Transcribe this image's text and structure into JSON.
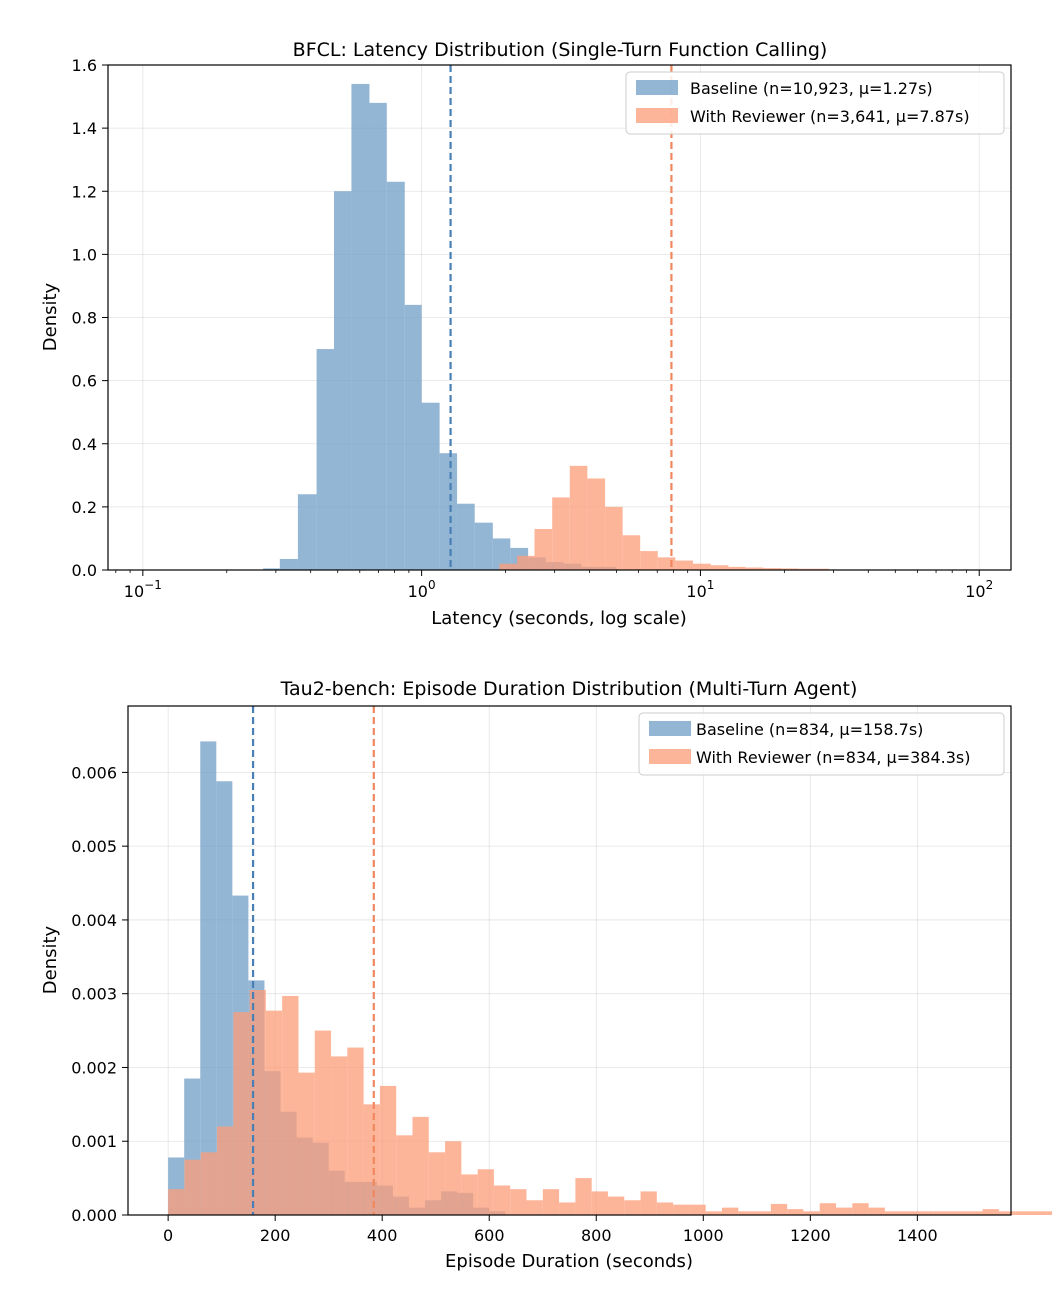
{
  "chart_data": [
    {
      "type": "histogram",
      "title": "BFCL: Latency Distribution (Single-Turn Function Calling)",
      "xlabel": "Latency (seconds, log scale)",
      "ylabel": "Density",
      "xscale": "log",
      "xlim": [
        0.075,
        130
      ],
      "ylim": [
        0,
        1.6
      ],
      "xticks": [
        {
          "value": 0.1,
          "base": "10",
          "exp": "−1"
        },
        {
          "value": 1,
          "base": "10",
          "exp": "0"
        },
        {
          "value": 10,
          "base": "10",
          "exp": "1"
        },
        {
          "value": 100,
          "base": "10",
          "exp": "2"
        }
      ],
      "yticks": [
        "0.0",
        "0.2",
        "0.4",
        "0.6",
        "0.8",
        "1.0",
        "1.2",
        "1.4",
        "1.6"
      ],
      "grid": true,
      "legend_position": "upper right",
      "series": [
        {
          "name": "Baseline (n=10,923, μ=1.27s)",
          "color": "#6f9dc7",
          "opacity": 0.75,
          "mean": 1.27,
          "bins": [
            {
              "x0": 0.27,
              "x1": 0.31,
              "y": 0.005
            },
            {
              "x0": 0.31,
              "x1": 0.36,
              "y": 0.035
            },
            {
              "x0": 0.36,
              "x1": 0.42,
              "y": 0.24
            },
            {
              "x0": 0.42,
              "x1": 0.485,
              "y": 0.7
            },
            {
              "x0": 0.485,
              "x1": 0.56,
              "y": 1.2
            },
            {
              "x0": 0.56,
              "x1": 0.65,
              "y": 1.54
            },
            {
              "x0": 0.65,
              "x1": 0.75,
              "y": 1.48
            },
            {
              "x0": 0.75,
              "x1": 0.87,
              "y": 1.23
            },
            {
              "x0": 0.87,
              "x1": 1.0,
              "y": 0.84
            },
            {
              "x0": 1.0,
              "x1": 1.16,
              "y": 0.53
            },
            {
              "x0": 1.16,
              "x1": 1.34,
              "y": 0.37
            },
            {
              "x0": 1.34,
              "x1": 1.55,
              "y": 0.21
            },
            {
              "x0": 1.55,
              "x1": 1.8,
              "y": 0.15
            },
            {
              "x0": 1.8,
              "x1": 2.08,
              "y": 0.1
            },
            {
              "x0": 2.08,
              "x1": 2.41,
              "y": 0.07
            },
            {
              "x0": 2.41,
              "x1": 2.79,
              "y": 0.04
            },
            {
              "x0": 2.79,
              "x1": 3.23,
              "y": 0.025
            },
            {
              "x0": 3.23,
              "x1": 3.74,
              "y": 0.02
            },
            {
              "x0": 3.74,
              "x1": 5.0,
              "y": 0.01
            }
          ]
        },
        {
          "name": "With Reviewer (n=3,641, μ=7.87s)",
          "color": "#fc9c78",
          "opacity": 0.75,
          "mean": 7.87,
          "bins": [
            {
              "x0": 1.9,
              "x1": 2.2,
              "y": 0.02
            },
            {
              "x0": 2.2,
              "x1": 2.54,
              "y": 0.045
            },
            {
              "x0": 2.54,
              "x1": 2.94,
              "y": 0.13
            },
            {
              "x0": 2.94,
              "x1": 3.4,
              "y": 0.23
            },
            {
              "x0": 3.4,
              "x1": 3.93,
              "y": 0.33
            },
            {
              "x0": 3.93,
              "x1": 4.55,
              "y": 0.29
            },
            {
              "x0": 4.55,
              "x1": 5.26,
              "y": 0.2
            },
            {
              "x0": 5.26,
              "x1": 6.08,
              "y": 0.11
            },
            {
              "x0": 6.08,
              "x1": 7.03,
              "y": 0.06
            },
            {
              "x0": 7.03,
              "x1": 8.13,
              "y": 0.04
            },
            {
              "x0": 8.13,
              "x1": 9.4,
              "y": 0.03
            },
            {
              "x0": 9.4,
              "x1": 10.9,
              "y": 0.02
            },
            {
              "x0": 10.9,
              "x1": 12.6,
              "y": 0.015
            },
            {
              "x0": 12.6,
              "x1": 14.5,
              "y": 0.01
            },
            {
              "x0": 14.5,
              "x1": 16.8,
              "y": 0.008
            },
            {
              "x0": 16.8,
              "x1": 19.5,
              "y": 0.006
            },
            {
              "x0": 19.5,
              "x1": 22.5,
              "y": 0.005
            },
            {
              "x0": 22.5,
              "x1": 29.0,
              "y": 0.004
            }
          ]
        }
      ]
    },
    {
      "type": "histogram",
      "title": "Tau2-bench: Episode Duration Distribution (Multi-Turn Agent)",
      "xlabel": "Episode Duration (seconds)",
      "ylabel": "Density",
      "xscale": "linear",
      "xlim": [
        -75,
        1575
      ],
      "ylim": [
        0,
        0.0069
      ],
      "xticks": [
        "0",
        "200",
        "400",
        "600",
        "800",
        "1000",
        "1200",
        "1400"
      ],
      "xtick_values": [
        0,
        200,
        400,
        600,
        800,
        1000,
        1200,
        1400
      ],
      "yticks": [
        "0.000",
        "0.001",
        "0.002",
        "0.003",
        "0.004",
        "0.005",
        "0.006"
      ],
      "ytick_values": [
        0,
        0.001,
        0.002,
        0.003,
        0.004,
        0.005,
        0.006
      ],
      "grid": true,
      "legend_position": "upper right",
      "series": [
        {
          "name": "Baseline (n=834, μ=158.7s)",
          "color": "#6f9dc7",
          "opacity": 0.75,
          "mean": 158.7,
          "bin_start": 0,
          "bin_width": 30,
          "values": [
            0.00078,
            0.00185,
            0.00642,
            0.00588,
            0.00433,
            0.00318,
            0.00195,
            0.0014,
            0.00105,
            0.00098,
            0.0006,
            0.00045,
            0.00045,
            0.0004,
            0.00025,
            0.0001,
            0.0002,
            0.00032,
            0.0003,
            0.0001,
            5e-05
          ]
        },
        {
          "name": "With Reviewer (n=834, μ=384.3s)",
          "color": "#fc9c78",
          "opacity": 0.75,
          "mean": 384.3,
          "bin_start": 0,
          "bin_width": 30.44,
          "values": [
            0.00035,
            0.00075,
            0.00085,
            0.0012,
            0.00275,
            0.00305,
            0.00277,
            0.00297,
            0.00193,
            0.0025,
            0.00215,
            0.00227,
            0.0015,
            0.00175,
            0.00108,
            0.00133,
            0.00085,
            0.001,
            0.00055,
            0.00062,
            0.0004,
            0.00035,
            0.0002,
            0.00035,
            0.00017,
            0.0005,
            0.00032,
            0.00025,
            0.0002,
            0.00032,
            0.00017,
            0.00014,
            0.00014,
            5e-05,
            0.0001,
            5e-05,
            5e-05,
            0.00015,
            8e-05,
            5e-05,
            0.00016,
            0.0001,
            0.00016,
            0.0001,
            5e-05,
            5e-05,
            5e-05,
            5e-05,
            5e-05,
            5e-05,
            8e-05,
            5e-05,
            5e-05,
            5e-05,
            5e-05,
            5e-05,
            5e-05,
            5e-05,
            5e-05,
            8e-05,
            5e-05,
            5e-05,
            5e-05,
            5e-05
          ]
        }
      ]
    }
  ]
}
